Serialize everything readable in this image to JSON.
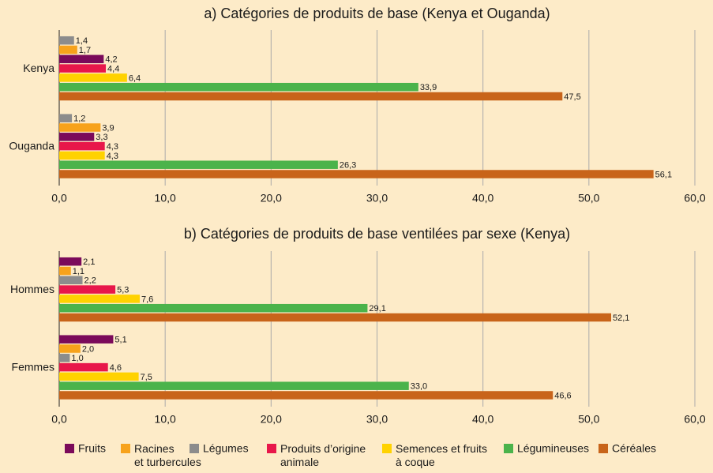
{
  "chart_data": [
    {
      "type": "hbar",
      "title": "a) Catégories de produits de base (Kenya et Ouganda)",
      "categories": [
        "Kenya",
        "Ouganda"
      ],
      "series": [
        {
          "color": "#8c8c8c",
          "values": [
            1.4,
            1.2
          ],
          "value_labels": [
            "1,4",
            "1,2"
          ]
        },
        {
          "color": "#f7a21b",
          "values": [
            1.7,
            3.9
          ],
          "value_labels": [
            "1,7",
            "3,9"
          ]
        },
        {
          "color": "#7b0a5a",
          "values": [
            4.2,
            3.3
          ],
          "value_labels": [
            "4,2",
            "3,3"
          ]
        },
        {
          "color": "#e8174a",
          "values": [
            4.4,
            4.3
          ],
          "value_labels": [
            "4,4",
            "4,3"
          ]
        },
        {
          "color": "#ffd200",
          "values": [
            6.4,
            4.3
          ],
          "value_labels": [
            "6,4",
            "4,3"
          ]
        },
        {
          "color": "#4bb34b",
          "values": [
            33.9,
            26.3
          ],
          "value_labels": [
            "33,9",
            "26,3"
          ]
        },
        {
          "color": "#c8641a",
          "values": [
            47.5,
            56.1
          ],
          "value_labels": [
            "47,5",
            "56,1"
          ]
        }
      ],
      "xlim": [
        0,
        60
      ],
      "xticks": [
        {
          "value": 0,
          "label": "0,0"
        },
        {
          "value": 10,
          "label": "10,0"
        },
        {
          "value": 20,
          "label": "20,0"
        },
        {
          "value": 30,
          "label": "30,0"
        },
        {
          "value": 40,
          "label": "40,0"
        },
        {
          "value": 50,
          "label": "50,0"
        },
        {
          "value": 60,
          "label": "60,0"
        }
      ],
      "grid": true
    },
    {
      "type": "hbar",
      "title": "b) Catégories de produits de base ventilées par sexe (Kenya)",
      "categories": [
        "Hommes",
        "Femmes"
      ],
      "series": [
        {
          "name": "Fruits",
          "color": "#7b0a5a",
          "values": [
            2.1,
            5.1
          ],
          "value_labels": [
            "2,1",
            "5,1"
          ]
        },
        {
          "name": "Racines\net turbercules",
          "color": "#f7a21b",
          "values": [
            1.1,
            2.0
          ],
          "value_labels": [
            "1,1",
            "2,0"
          ]
        },
        {
          "name": "Légumes",
          "color": "#8c8c8c",
          "values": [
            2.2,
            1.0
          ],
          "value_labels": [
            "2,2",
            "1,0"
          ]
        },
        {
          "name": "Produits d’origine\nanimale",
          "color": "#e8174a",
          "values": [
            5.3,
            4.6
          ],
          "value_labels": [
            "5,3",
            "4,6"
          ]
        },
        {
          "name": "Semences et fruits\nà coque",
          "color": "#ffd200",
          "values": [
            7.6,
            7.5
          ],
          "value_labels": [
            "7,6",
            "7,5"
          ]
        },
        {
          "name": "Légumineuses",
          "color": "#4bb34b",
          "values": [
            29.1,
            33.0
          ],
          "value_labels": [
            "29,1",
            "33,0"
          ]
        },
        {
          "name": "Céréales",
          "color": "#c8641a",
          "values": [
            52.1,
            46.6
          ],
          "value_labels": [
            "52,1",
            "46,6"
          ]
        }
      ],
      "xlim": [
        0,
        60
      ],
      "xticks": [
        {
          "value": 0,
          "label": "0,0"
        },
        {
          "value": 10,
          "label": "10,0"
        },
        {
          "value": 20,
          "label": "20,0"
        },
        {
          "value": 30,
          "label": "30,0"
        },
        {
          "value": 40,
          "label": "40,0"
        },
        {
          "value": 50,
          "label": "50,0"
        },
        {
          "value": 60,
          "label": "60,0"
        }
      ],
      "grid": true
    }
  ]
}
